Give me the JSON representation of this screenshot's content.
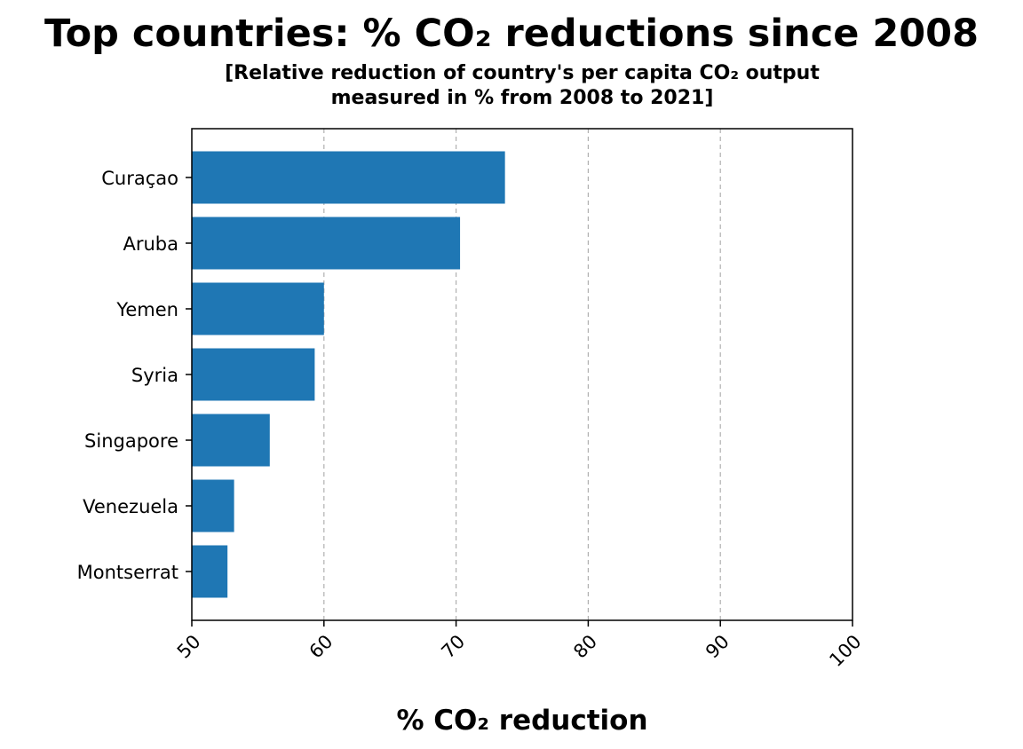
{
  "chart_data": {
    "type": "bar",
    "orientation": "horizontal",
    "title": "Top countries: % CO₂ reductions since 2008",
    "subtitle_lines": [
      "[Relative reduction of country's per capita CO₂ output",
      "measured in % from 2008 to 2021]"
    ],
    "xlabel": "% CO₂ reduction",
    "ylabel": "",
    "categories": [
      "Curaçao",
      "Aruba",
      "Yemen",
      "Syria",
      "Singapore",
      "Venezuela",
      "Montserrat"
    ],
    "values": [
      73.7,
      70.3,
      60.0,
      59.3,
      55.9,
      53.2,
      52.7
    ],
    "xlim": [
      50,
      100
    ],
    "xticks": [
      "50",
      "60",
      "70",
      "80",
      "90",
      "100"
    ],
    "grid": "x, dashed",
    "bar_color": "#1f77b4",
    "grid_color": "#b0b0b0"
  }
}
